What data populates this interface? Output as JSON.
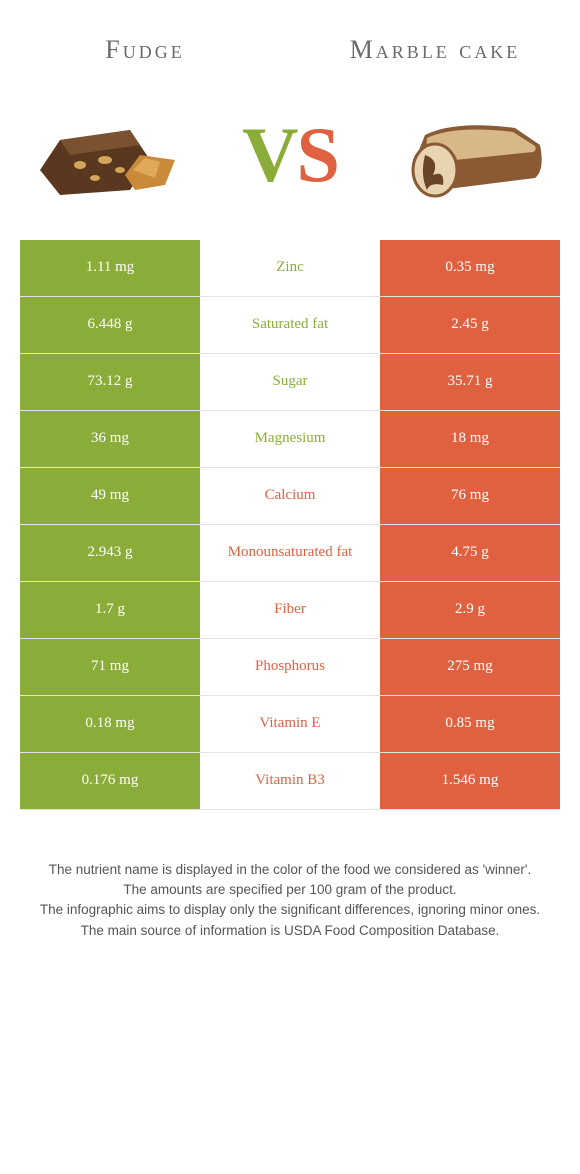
{
  "header": {
    "left_title": "Fudge",
    "right_title": "Marble cake"
  },
  "vs": {
    "v": "V",
    "s": "S"
  },
  "colors": {
    "left": "#8aad3a",
    "right": "#df6140",
    "text": "#5a5a5a"
  },
  "rows": [
    {
      "left": "1.11 mg",
      "label": "Zinc",
      "right": "0.35 mg",
      "winner": "left"
    },
    {
      "left": "6.448 g",
      "label": "Saturated fat",
      "right": "2.45 g",
      "winner": "left"
    },
    {
      "left": "73.12 g",
      "label": "Sugar",
      "right": "35.71 g",
      "winner": "left"
    },
    {
      "left": "36 mg",
      "label": "Magnesium",
      "right": "18 mg",
      "winner": "left"
    },
    {
      "left": "49 mg",
      "label": "Calcium",
      "right": "76 mg",
      "winner": "right"
    },
    {
      "left": "2.943 g",
      "label": "Monounsaturated fat",
      "right": "4.75 g",
      "winner": "right"
    },
    {
      "left": "1.7 g",
      "label": "Fiber",
      "right": "2.9 g",
      "winner": "right"
    },
    {
      "left": "71 mg",
      "label": "Phosphorus",
      "right": "275 mg",
      "winner": "right"
    },
    {
      "left": "0.18 mg",
      "label": "Vitamin E",
      "right": "0.85 mg",
      "winner": "right"
    },
    {
      "left": "0.176 mg",
      "label": "Vitamin B3",
      "right": "1.546 mg",
      "winner": "right"
    }
  ],
  "footer": {
    "line1": "The nutrient name is displayed in the color of the food we considered as 'winner'.",
    "line2": "The amounts are specified per 100 gram of the product.",
    "line3": "The infographic aims to display only the significant differences, ignoring minor ones.",
    "line4": "The main source of information is USDA Food Composition Database."
  }
}
